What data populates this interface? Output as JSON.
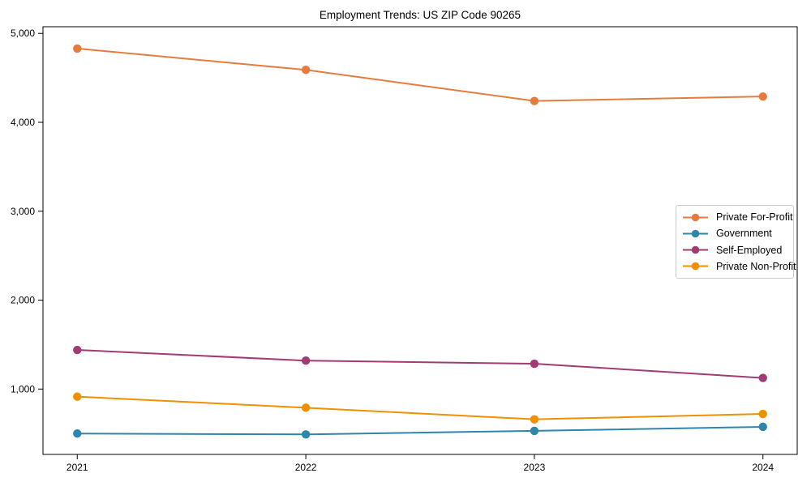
{
  "title": "Employment Trends: US ZIP Code 90265",
  "chart_data": {
    "type": "line",
    "title": "Employment Trends: US ZIP Code 90265",
    "xlabel": "",
    "ylabel": "",
    "categories": [
      "2021",
      "2022",
      "2023",
      "2024"
    ],
    "x": [
      2021,
      2022,
      2023,
      2024
    ],
    "series": [
      {
        "name": "Private For-Profit",
        "color": "#e57c3e",
        "values": [
          4830,
          4590,
          4240,
          4290
        ]
      },
      {
        "name": "Government",
        "color": "#2e86ab",
        "values": [
          500,
          490,
          530,
          575
        ]
      },
      {
        "name": "Self-Employed",
        "color": "#a23b72",
        "values": [
          1440,
          1320,
          1285,
          1125
        ]
      },
      {
        "name": "Private Non-Profit",
        "color": "#f18f01",
        "values": [
          915,
          790,
          660,
          720
        ]
      }
    ],
    "yticks": [
      1000,
      2000,
      3000,
      4000,
      5000
    ],
    "ytick_labels": [
      "1,000",
      "2,000",
      "3,000",
      "4,000",
      "5,000"
    ],
    "ylim": [
      265,
      5075
    ],
    "grid": false,
    "legend_position": "center right",
    "marker": "circle",
    "frame": "full-box",
    "axis_color": "#000000"
  }
}
